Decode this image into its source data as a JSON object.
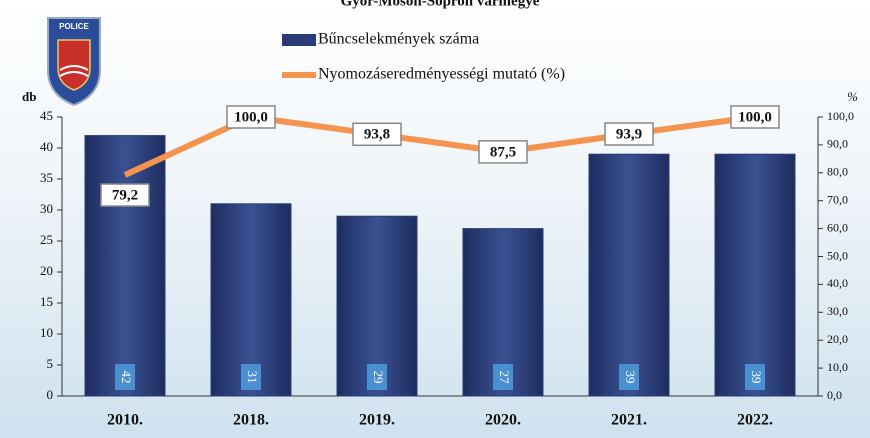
{
  "logo": {
    "text": "POLICE"
  },
  "chart_data": {
    "type": "combo",
    "title": "Győr-Moson-Sopron vármegye",
    "y_label": "db",
    "y2_label": "%",
    "categories": [
      "2010.",
      "2018.",
      "2019.",
      "2020.",
      "2021.",
      "2022."
    ],
    "series": [
      {
        "name": "Bűncselekmények száma",
        "type": "bar",
        "color": "#2a3c78",
        "values": [
          42,
          31,
          29,
          27,
          39,
          39
        ]
      },
      {
        "name": "Nyomozáseredményességi mutató (%)",
        "type": "line",
        "axis": "y2",
        "color": "#f4944f",
        "values": [
          79.2,
          100.0,
          93.8,
          87.5,
          93.9,
          100.0
        ],
        "value_labels": [
          "79,2",
          "100,0",
          "93,8",
          "87,5",
          "93,9",
          "100,0"
        ]
      }
    ],
    "ylim": [
      0,
      45
    ],
    "yticks": [
      0,
      5,
      10,
      15,
      20,
      25,
      30,
      35,
      40,
      45
    ],
    "y2lim": [
      0,
      100
    ],
    "y2ticks": [
      {
        "value": 0,
        "label": "0,0"
      },
      {
        "value": 10,
        "label": "10,0"
      },
      {
        "value": 20,
        "label": "20,0"
      },
      {
        "value": 30,
        "label": "30,0"
      },
      {
        "value": 40,
        "label": "40,0"
      },
      {
        "value": 50,
        "label": "50,0"
      },
      {
        "value": 60,
        "label": "60,0"
      },
      {
        "value": 70,
        "label": "70,0"
      },
      {
        "value": 80,
        "label": "80,0"
      },
      {
        "value": 90,
        "label": "90,0"
      },
      {
        "value": 100,
        "label": "100,0"
      }
    ],
    "legend": "top"
  }
}
